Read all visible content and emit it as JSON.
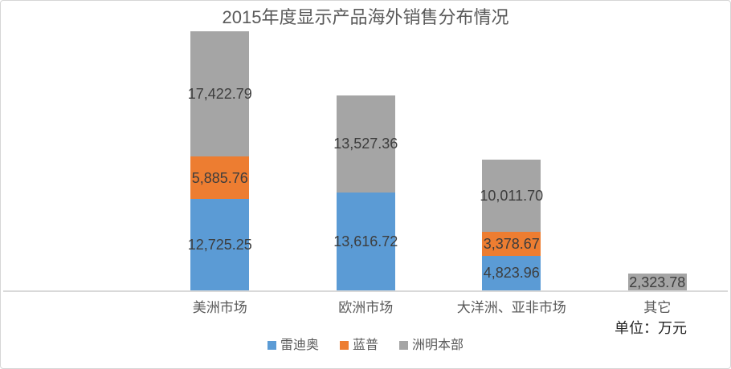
{
  "chart_data": {
    "type": "bar",
    "stacked": true,
    "title": "2015年度显示产品海外销售分布情况",
    "unit_label": "单位：万元",
    "categories": [
      "美洲市场",
      "欧洲市场",
      "大洋洲、亚非市场",
      "其它"
    ],
    "series": [
      {
        "name": "雷迪奥",
        "color": "#5B9BD5",
        "values": [
          12725.25,
          13616.72,
          4823.96,
          0
        ]
      },
      {
        "name": "蓝普",
        "color": "#ED7D31",
        "values": [
          5885.76,
          0,
          3378.67,
          0
        ]
      },
      {
        "name": "洲明本部",
        "color": "#A5A5A5",
        "values": [
          17422.79,
          13527.36,
          10011.7,
          2323.78
        ]
      }
    ],
    "category_totals": [
      36033.8,
      27144.08,
      18214.33,
      2323.78
    ],
    "value_label_format": "#,##0.00",
    "legend_position": "bottom",
    "grid": false,
    "y_axis_visible": false,
    "x_axis_line_color": "#D9D9D9",
    "background_color": "#FFFFFF",
    "border_color": "#D6D6D6",
    "title_color": "#595959",
    "value_label_color": "#3D3D3D",
    "axis_text_color": "#595959",
    "unit_text_color": "#262626"
  }
}
